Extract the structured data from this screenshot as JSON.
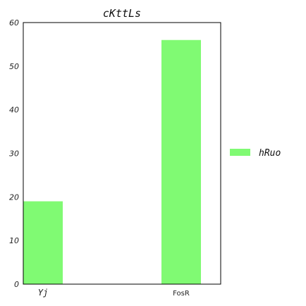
{
  "chart_data": {
    "type": "bar",
    "title": "cKttLs",
    "categories": [
      "Yj",
      "FosR"
    ],
    "series": [
      {
        "name": "hRuo",
        "values": [
          19,
          56
        ],
        "color": "#80fa73"
      }
    ],
    "xlabel": "",
    "ylabel": "",
    "ylim": [
      0,
      60
    ],
    "yticks": [
      "0",
      "10",
      "20",
      "30",
      "40",
      "50",
      "60"
    ],
    "grid": false,
    "legend": {
      "position": "right"
    }
  }
}
